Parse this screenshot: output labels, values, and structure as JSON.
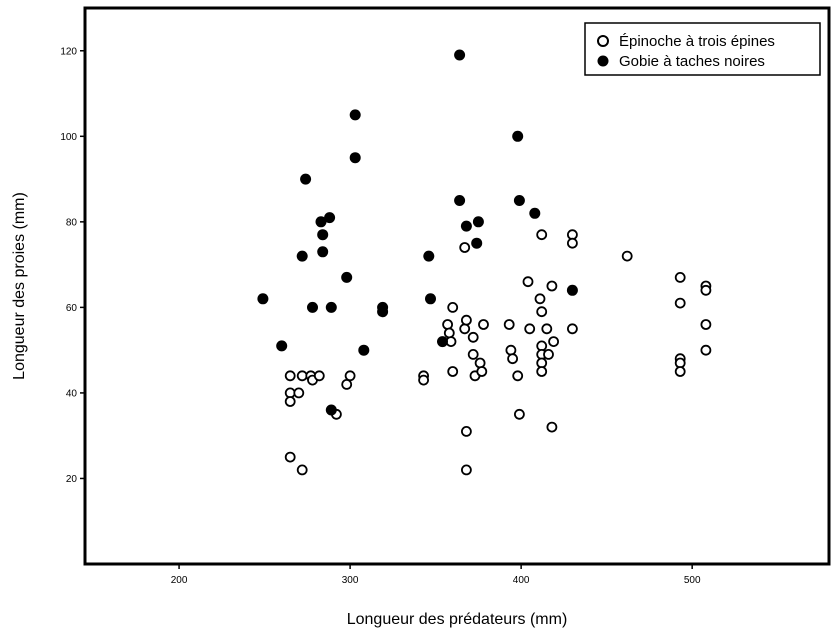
{
  "chart_data": {
    "type": "scatter",
    "xlabel": "Longueur des prédateurs (mm)",
    "ylabel": "Longueur des proies (mm)",
    "xlim": [
      145,
      580
    ],
    "ylim": [
      0,
      130
    ],
    "xticks": [
      200,
      300,
      400,
      500
    ],
    "yticks": [
      20,
      40,
      60,
      80,
      100,
      120
    ],
    "grid": false,
    "legend_position": "top-right",
    "series": [
      {
        "name": "Épinoche à trois épines",
        "marker": "open-circle",
        "color": "#000000",
        "points": [
          [
            265,
            44
          ],
          [
            265,
            40
          ],
          [
            265,
            38
          ],
          [
            265,
            25
          ],
          [
            270,
            40
          ],
          [
            272,
            44
          ],
          [
            272,
            22
          ],
          [
            277,
            44
          ],
          [
            278,
            43
          ],
          [
            282,
            44
          ],
          [
            292,
            35
          ],
          [
            298,
            42
          ],
          [
            300,
            44
          ],
          [
            343,
            44
          ],
          [
            343,
            43
          ],
          [
            357,
            56
          ],
          [
            358,
            54
          ],
          [
            359,
            52
          ],
          [
            360,
            45
          ],
          [
            360,
            60
          ],
          [
            367,
            55
          ],
          [
            367,
            74
          ],
          [
            368,
            57
          ],
          [
            368,
            31
          ],
          [
            368,
            22
          ],
          [
            372,
            53
          ],
          [
            372,
            49
          ],
          [
            373,
            44
          ],
          [
            376,
            47
          ],
          [
            377,
            45
          ],
          [
            378,
            56
          ],
          [
            393,
            56
          ],
          [
            394,
            50
          ],
          [
            395,
            48
          ],
          [
            398,
            44
          ],
          [
            399,
            35
          ],
          [
            404,
            66
          ],
          [
            405,
            55
          ],
          [
            412,
            77
          ],
          [
            411,
            62
          ],
          [
            412,
            59
          ],
          [
            412,
            51
          ],
          [
            412,
            49
          ],
          [
            412,
            47
          ],
          [
            412,
            45
          ],
          [
            415,
            55
          ],
          [
            416,
            49
          ],
          [
            418,
            65
          ],
          [
            419,
            52
          ],
          [
            418,
            32
          ],
          [
            430,
            77
          ],
          [
            430,
            75
          ],
          [
            430,
            55
          ],
          [
            462,
            72
          ],
          [
            493,
            67
          ],
          [
            493,
            61
          ],
          [
            493,
            48
          ],
          [
            493,
            47
          ],
          [
            493,
            45
          ],
          [
            508,
            65
          ],
          [
            508,
            64
          ],
          [
            508,
            56
          ],
          [
            508,
            50
          ]
        ]
      },
      {
        "name": "Gobie à taches noires",
        "marker": "filled-circle",
        "color": "#000000",
        "points": [
          [
            249,
            62
          ],
          [
            260,
            51
          ],
          [
            272,
            72
          ],
          [
            274,
            90
          ],
          [
            278,
            60
          ],
          [
            283,
            80
          ],
          [
            284,
            77
          ],
          [
            284,
            73
          ],
          [
            288,
            81
          ],
          [
            289,
            60
          ],
          [
            289,
            36
          ],
          [
            298,
            67
          ],
          [
            303,
            105
          ],
          [
            303,
            95
          ],
          [
            308,
            50
          ],
          [
            319,
            60
          ],
          [
            319,
            59
          ],
          [
            346,
            72
          ],
          [
            347,
            62
          ],
          [
            354,
            52
          ],
          [
            364,
            119
          ],
          [
            364,
            85
          ],
          [
            368,
            79
          ],
          [
            374,
            75
          ],
          [
            375,
            80
          ],
          [
            398,
            100
          ],
          [
            399,
            85
          ],
          [
            408,
            82
          ],
          [
            430,
            64
          ]
        ]
      }
    ]
  }
}
